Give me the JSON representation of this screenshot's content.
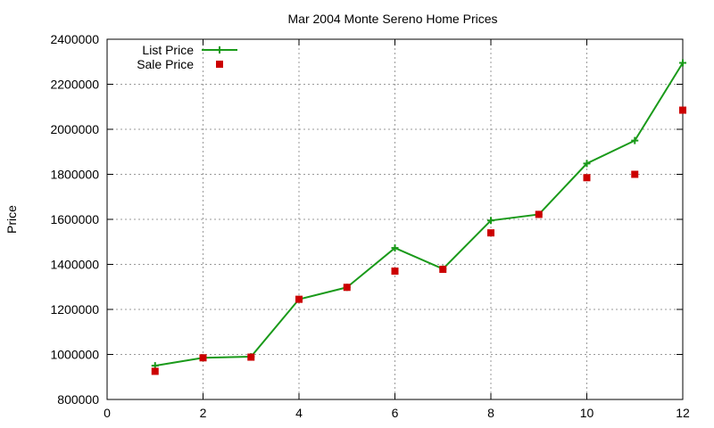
{
  "chart_data": {
    "type": "line",
    "title": "Mar 2004 Monte Sereno Home Prices",
    "xlabel": "",
    "ylabel": "Price",
    "xlim": [
      0,
      12
    ],
    "ylim": [
      800000,
      2400000
    ],
    "x_ticks": [
      0,
      2,
      4,
      6,
      8,
      10,
      12
    ],
    "y_ticks": [
      800000,
      1000000,
      1200000,
      1400000,
      1600000,
      1800000,
      2000000,
      2200000,
      2400000
    ],
    "grid": true,
    "legend_position": "top-left",
    "series": [
      {
        "name": "List Price",
        "style": "line-with-plus-markers",
        "color": "#1a9a1a",
        "x": [
          1,
          2,
          3,
          4,
          5,
          6,
          7,
          8,
          9,
          10,
          11,
          12
        ],
        "y": [
          950000,
          985000,
          990000,
          1245000,
          1298000,
          1473000,
          1380000,
          1595000,
          1622000,
          1848000,
          1950000,
          2295000
        ]
      },
      {
        "name": "Sale Price",
        "style": "square-markers",
        "color": "#cc0000",
        "x": [
          1,
          2,
          3,
          4,
          5,
          6,
          7,
          8,
          9,
          10,
          11,
          12
        ],
        "y": [
          925000,
          985000,
          988000,
          1245000,
          1298000,
          1370000,
          1378000,
          1540000,
          1622000,
          1785000,
          1800000,
          2085000
        ]
      }
    ]
  }
}
